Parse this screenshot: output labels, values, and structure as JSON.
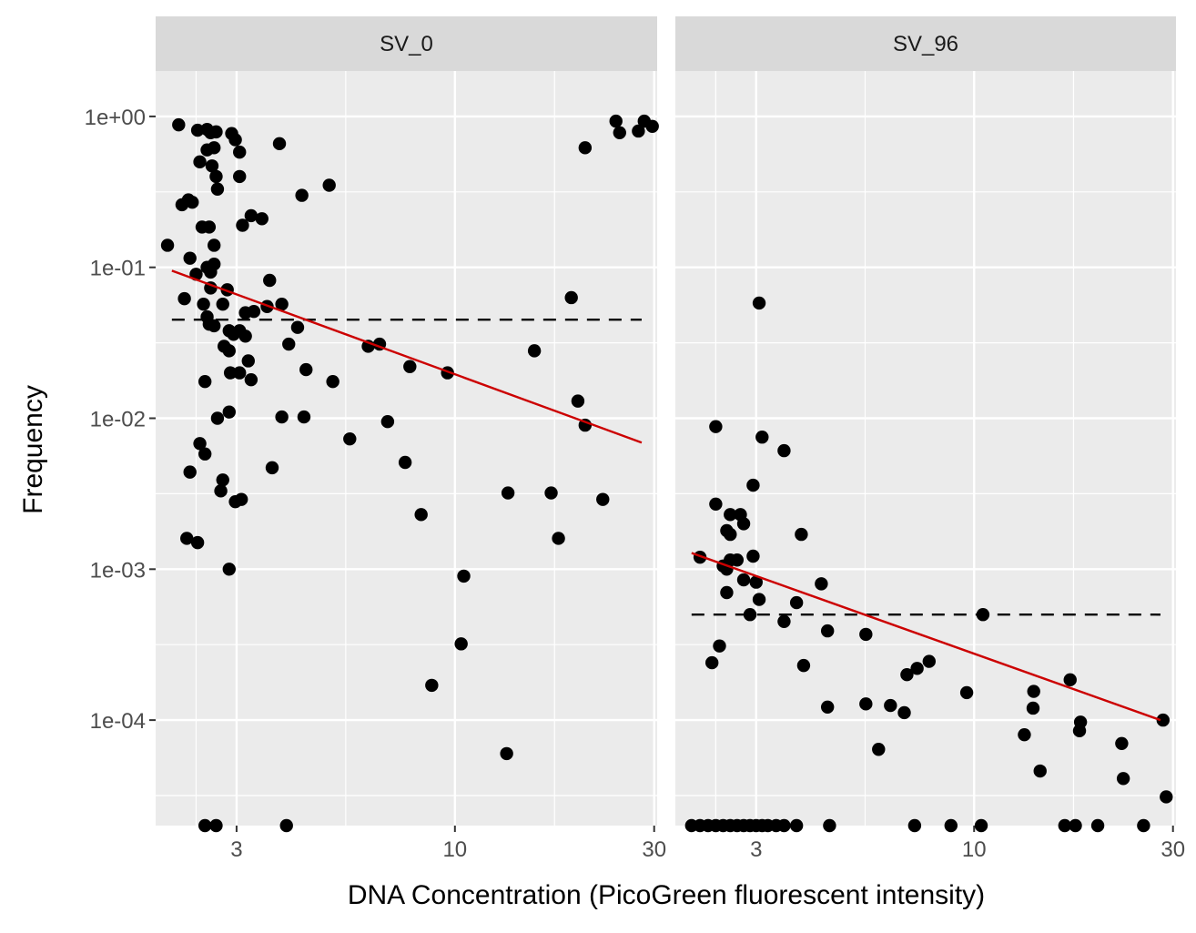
{
  "chart_data": {
    "type": "scatter",
    "xlabel": "DNA Concentration (PicoGreen fluorescent intensity)",
    "ylabel": "Frequency",
    "x_scale": "log10",
    "y_scale": "log10",
    "x_ticks": [
      3,
      10,
      30
    ],
    "x_tick_labels": [
      "3",
      "10",
      "30"
    ],
    "y_ticks": [
      1,
      0.1,
      0.01,
      0.001,
      0.0001
    ],
    "y_tick_labels": [
      "1e+00",
      "1e-01",
      "1e-02",
      "1e-03",
      "1e-04"
    ],
    "xlim": [
      1.92,
      30.5
    ],
    "ylim": [
      2e-05,
      2.0
    ],
    "grid": true,
    "colors": {
      "panel_bg": "#ebebeb",
      "strip_bg": "#d9d9d9",
      "grid": "#ffffff",
      "points": "#000000",
      "fit_line": "#cc0000",
      "dashed_line": "#000000",
      "axis_text": "#4d4d4d",
      "strip_text": "#1a1a1a"
    },
    "panels": [
      {
        "strip": "SV_0",
        "fit_line": {
          "x": [
            2.1,
            28.0
          ],
          "y": [
            0.095,
            0.0069
          ]
        },
        "dashed_line": {
          "x": [
            2.1,
            28.0
          ],
          "y": 0.045
        },
        "points": [
          [
            2.18,
            0.88
          ],
          [
            2.55,
            0.82
          ],
          [
            2.42,
            0.81
          ],
          [
            2.68,
            0.79
          ],
          [
            2.6,
            0.78
          ],
          [
            2.92,
            0.77
          ],
          [
            2.98,
            0.7
          ],
          [
            2.65,
            0.62
          ],
          [
            2.55,
            0.6
          ],
          [
            3.05,
            0.58
          ],
          [
            3.8,
            0.66
          ],
          [
            2.45,
            0.5
          ],
          [
            2.62,
            0.47
          ],
          [
            2.68,
            0.4
          ],
          [
            3.05,
            0.4
          ],
          [
            2.7,
            0.33
          ],
          [
            5.0,
            0.35
          ],
          [
            4.3,
            0.3
          ],
          [
            2.3,
            0.28
          ],
          [
            2.22,
            0.26
          ],
          [
            2.35,
            0.27
          ],
          [
            3.25,
            0.22
          ],
          [
            3.45,
            0.21
          ],
          [
            3.1,
            0.19
          ],
          [
            2.48,
            0.185
          ],
          [
            2.58,
            0.185
          ],
          [
            2.05,
            0.14
          ],
          [
            2.65,
            0.14
          ],
          [
            2.32,
            0.115
          ],
          [
            2.65,
            0.105
          ],
          [
            2.55,
            0.1
          ],
          [
            2.6,
            0.093
          ],
          [
            2.4,
            0.09
          ],
          [
            3.6,
            0.082
          ],
          [
            2.6,
            0.073
          ],
          [
            2.85,
            0.071
          ],
          [
            2.25,
            0.062
          ],
          [
            2.5,
            0.057
          ],
          [
            2.78,
            0.057
          ],
          [
            3.85,
            0.057
          ],
          [
            3.55,
            0.055
          ],
          [
            3.3,
            0.051
          ],
          [
            3.15,
            0.05
          ],
          [
            2.55,
            0.047
          ],
          [
            2.58,
            0.042
          ],
          [
            2.65,
            0.041
          ],
          [
            4.2,
            0.04
          ],
          [
            2.88,
            0.038
          ],
          [
            3.05,
            0.038
          ],
          [
            3.15,
            0.035
          ],
          [
            2.95,
            0.036
          ],
          [
            4.0,
            0.031
          ],
          [
            2.8,
            0.03
          ],
          [
            2.88,
            0.028
          ],
          [
            3.2,
            0.024
          ],
          [
            6.2,
            0.03
          ],
          [
            6.6,
            0.031
          ],
          [
            15.5,
            0.028
          ],
          [
            7.8,
            0.022
          ],
          [
            4.4,
            0.021
          ],
          [
            9.6,
            0.02
          ],
          [
            2.9,
            0.02
          ],
          [
            3.05,
            0.02
          ],
          [
            3.25,
            0.018
          ],
          [
            2.52,
            0.0175
          ],
          [
            5.1,
            0.0175
          ],
          [
            19.0,
            0.063
          ],
          [
            20.5,
            0.62
          ],
          [
            24.3,
            0.93
          ],
          [
            24.8,
            0.78
          ],
          [
            27.5,
            0.8
          ],
          [
            28.4,
            0.93
          ],
          [
            29.7,
            0.86
          ],
          [
            2.88,
            0.011
          ],
          [
            2.7,
            0.01
          ],
          [
            3.85,
            0.0102
          ],
          [
            4.35,
            0.0102
          ],
          [
            19.7,
            0.013
          ],
          [
            20.5,
            0.009
          ],
          [
            5.6,
            0.0073
          ],
          [
            6.9,
            0.0095
          ],
          [
            2.45,
            0.0068
          ],
          [
            2.52,
            0.0058
          ],
          [
            7.6,
            0.0051
          ],
          [
            3.65,
            0.0047
          ],
          [
            2.32,
            0.0044
          ],
          [
            2.78,
            0.0039
          ],
          [
            2.75,
            0.0033
          ],
          [
            2.98,
            0.0028
          ],
          [
            3.08,
            0.0029
          ],
          [
            13.4,
            0.0032
          ],
          [
            17.0,
            0.0032
          ],
          [
            22.6,
            0.0029
          ],
          [
            8.3,
            0.0023
          ],
          [
            2.28,
            0.0016
          ],
          [
            2.42,
            0.0015
          ],
          [
            17.7,
            0.0016
          ],
          [
            2.88,
            0.001
          ],
          [
            10.5,
            0.0009
          ],
          [
            10.35,
            0.00032
          ],
          [
            8.8,
            0.00017
          ],
          [
            13.3,
            6e-05
          ],
          [
            2.52,
            2e-05
          ],
          [
            2.68,
            2e-05
          ],
          [
            3.95,
            2e-05
          ]
        ]
      },
      {
        "strip": "SV_96",
        "fit_line": {
          "x": [
            2.1,
            28.0
          ],
          "y": [
            0.00128,
            0.0001
          ]
        },
        "dashed_line": {
          "x": [
            2.1,
            28.0
          ],
          "y": 0.0005
        },
        "points": [
          [
            3.05,
            0.058
          ],
          [
            2.4,
            0.0088
          ],
          [
            3.1,
            0.0075
          ],
          [
            3.5,
            0.0061
          ],
          [
            2.95,
            0.0036
          ],
          [
            2.4,
            0.0027
          ],
          [
            2.6,
            0.0023
          ],
          [
            2.75,
            0.0023
          ],
          [
            2.8,
            0.002
          ],
          [
            2.55,
            0.0018
          ],
          [
            2.6,
            0.0017
          ],
          [
            3.85,
            0.0017
          ],
          [
            2.2,
            0.0012
          ],
          [
            2.6,
            0.00115
          ],
          [
            2.7,
            0.00115
          ],
          [
            2.95,
            0.00122
          ],
          [
            2.5,
            0.00105
          ],
          [
            2.55,
            0.001
          ],
          [
            2.8,
            0.00085
          ],
          [
            3.0,
            0.00082
          ],
          [
            4.3,
            0.0008
          ],
          [
            2.55,
            0.0007
          ],
          [
            3.05,
            0.00063
          ],
          [
            3.75,
            0.0006
          ],
          [
            2.9,
            0.0005
          ],
          [
            3.5,
            0.00045
          ],
          [
            4.45,
            0.00039
          ],
          [
            5.5,
            0.00037
          ],
          [
            10.5,
            0.0005
          ],
          [
            2.45,
            0.00031
          ],
          [
            2.35,
            0.00024
          ],
          [
            3.9,
            0.00023
          ],
          [
            7.3,
            0.00022
          ],
          [
            6.9,
            0.0002
          ],
          [
            7.8,
            0.000245
          ],
          [
            9.6,
            0.000152
          ],
          [
            13.9,
            0.000155
          ],
          [
            13.85,
            0.00012
          ],
          [
            17.0,
            0.000185
          ],
          [
            18.0,
            9.7e-05
          ],
          [
            17.9,
            8.5e-05
          ],
          [
            13.2,
            8e-05
          ],
          [
            22.6,
            7e-05
          ],
          [
            28.4,
            0.0001
          ],
          [
            5.5,
            0.000128
          ],
          [
            6.3,
            0.000125
          ],
          [
            6.8,
            0.000112
          ],
          [
            4.45,
            0.000122
          ],
          [
            5.9,
            6.4e-05
          ],
          [
            14.4,
            4.6e-05
          ],
          [
            22.8,
            4.1e-05
          ],
          [
            28.9,
            3.1e-05
          ],
          [
            2.1,
            2e-05
          ],
          [
            2.2,
            2e-05
          ],
          [
            2.3,
            2e-05
          ],
          [
            2.4,
            2e-05
          ],
          [
            2.5,
            2e-05
          ],
          [
            2.6,
            2e-05
          ],
          [
            2.7,
            2e-05
          ],
          [
            2.8,
            2e-05
          ],
          [
            2.9,
            2e-05
          ],
          [
            3.0,
            2e-05
          ],
          [
            3.1,
            2e-05
          ],
          [
            3.2,
            2e-05
          ],
          [
            3.35,
            2e-05
          ],
          [
            3.5,
            2e-05
          ],
          [
            3.75,
            2e-05
          ],
          [
            4.5,
            2e-05
          ],
          [
            7.2,
            2e-05
          ],
          [
            8.8,
            2e-05
          ],
          [
            10.4,
            2e-05
          ],
          [
            16.5,
            2e-05
          ],
          [
            17.5,
            2e-05
          ],
          [
            19.8,
            2e-05
          ],
          [
            25.5,
            2e-05
          ]
        ]
      }
    ]
  }
}
